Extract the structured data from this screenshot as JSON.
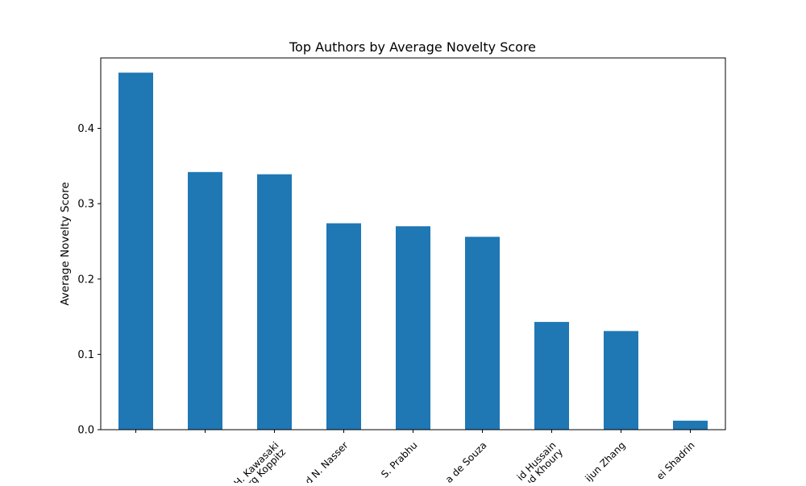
{
  "chart_data": {
    "type": "bar",
    "title": "Top Authors by Average Novelty Score",
    "xlabel": "",
    "ylabel": "Average Novelty Score",
    "ylim": [
      0,
      0.4935
    ],
    "yticks": [
      0.0,
      0.1,
      0.2,
      0.3,
      0.4
    ],
    "ytick_labels": [
      "0.0",
      "0.1",
      "0.2",
      "0.3",
      "0.4"
    ],
    "categories": [
      "",
      "",
      "...H. Kawasaki / ...örg Koppitz",
      "...d N. Nasser",
      "...S. Prabhu",
      "...a de Souza",
      "...id Hussain / ...oud Khoury",
      "...ijun Zhang",
      "...ei Shadrin"
    ],
    "tick_label_lines": [
      [],
      [],
      [
        "H. Kawasaki",
        "örg Koppitz"
      ],
      [
        "d N. Nasser"
      ],
      [
        "S. Prabhu"
      ],
      [
        "a de Souza"
      ],
      [
        "id Hussain",
        "oud Khoury"
      ],
      [
        "ijun Zhang"
      ],
      [
        "ei Shadrin"
      ]
    ],
    "values": [
      0.474,
      0.342,
      0.339,
      0.274,
      0.27,
      0.256,
      0.143,
      0.131,
      0.012
    ],
    "grid": false,
    "legend": "none",
    "colors": {
      "bar": "#1f77b4",
      "axis": "#000000",
      "background": "#ffffff"
    }
  }
}
